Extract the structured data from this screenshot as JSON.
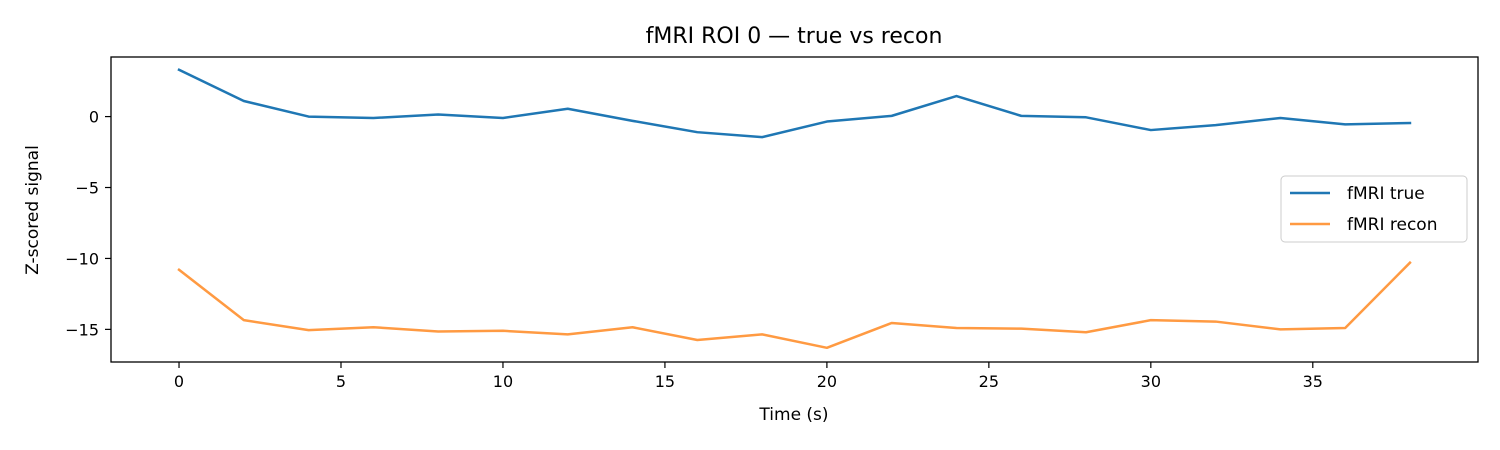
{
  "chart_data": {
    "type": "line",
    "title": "fMRI ROI 0 — true vs recon",
    "xlabel": "Time (s)",
    "ylabel": "Z-scored signal",
    "xlim": [
      -2.1,
      40.1
    ],
    "ylim": [
      -17.3,
      4.2
    ],
    "xticks": [
      0,
      5,
      10,
      15,
      20,
      25,
      30,
      35
    ],
    "yticks": [
      0,
      -5,
      -10,
      -15
    ],
    "grid": false,
    "legend_position": "center-right",
    "x": [
      0,
      2,
      4,
      6,
      8,
      10,
      12,
      14,
      16,
      18,
      20,
      22,
      24,
      26,
      28,
      30,
      32,
      34,
      36,
      38
    ],
    "series": [
      {
        "name": "fMRI true",
        "color": "#1f77b4",
        "values": [
          3.3,
          1.1,
          0.0,
          -0.1,
          0.15,
          -0.1,
          0.55,
          -0.3,
          -1.1,
          -1.45,
          -0.35,
          0.05,
          1.45,
          0.05,
          -0.05,
          -0.95,
          -0.6,
          -0.1,
          -0.55,
          -0.45
        ]
      },
      {
        "name": "fMRI recon",
        "color": "#ff9a42",
        "values": [
          -10.8,
          -14.35,
          -15.05,
          -14.85,
          -15.15,
          -15.1,
          -15.35,
          -14.85,
          -15.75,
          -15.35,
          -16.3,
          -14.55,
          -14.9,
          -14.95,
          -15.2,
          -14.35,
          -14.45,
          -15.0,
          -14.9,
          -10.3
        ]
      }
    ]
  }
}
